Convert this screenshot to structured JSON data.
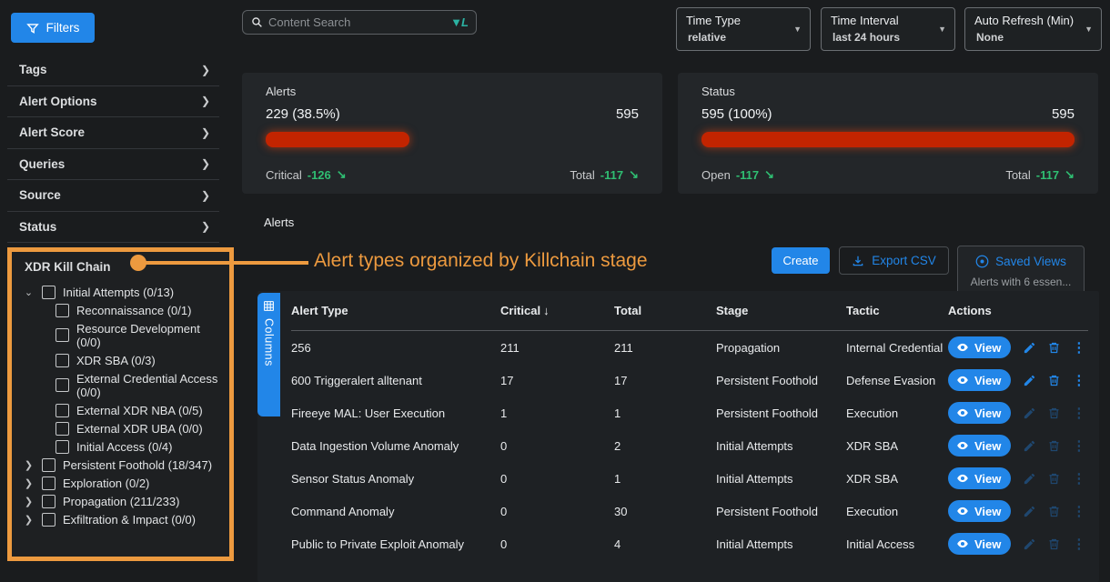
{
  "sidebar": {
    "filters_button": "Filters",
    "items": [
      "Tags",
      "Alert Options",
      "Alert Score",
      "Queries",
      "Source",
      "Status"
    ],
    "kill_chain": {
      "title": "XDR Kill Chain",
      "tree": [
        {
          "label": "Initial Attempts (0/13)",
          "expanded": true,
          "children": [
            "Reconnaissance (0/1)",
            "Resource Development (0/0)",
            "XDR SBA (0/3)",
            "External Credential Access (0/0)",
            "External XDR NBA (0/5)",
            "External XDR UBA (0/0)",
            "Initial Access (0/4)"
          ]
        },
        {
          "label": "Persistent Foothold (18/347)",
          "expanded": false
        },
        {
          "label": "Exploration (0/2)",
          "expanded": false
        },
        {
          "label": "Propagation (211/233)",
          "expanded": false
        },
        {
          "label": "Exfiltration & Impact (0/0)",
          "expanded": false
        }
      ]
    }
  },
  "topbar": {
    "search_placeholder": "Content Search",
    "dropdowns": [
      {
        "label": "Time Type",
        "value": "relative"
      },
      {
        "label": "Time Interval",
        "value": "last 24 hours"
      },
      {
        "label": "Auto Refresh (Min)",
        "value": "None"
      }
    ]
  },
  "cards": [
    {
      "title": "Alerts",
      "left_value": "229 (38.5%)",
      "right_value": "595",
      "bar_percent": 38.5,
      "footer_left_label": "Critical",
      "footer_left_delta": "-126",
      "footer_right_label": "Total",
      "footer_right_delta": "-117"
    },
    {
      "title": "Status",
      "left_value": "595 (100%)",
      "right_value": "595",
      "bar_percent": 100,
      "footer_left_label": "Open",
      "footer_left_delta": "-117",
      "footer_right_label": "Total",
      "footer_right_delta": "-117"
    }
  ],
  "annotation": {
    "text": "Alert types organized by Killchain stage",
    "color": "#ed9a3f"
  },
  "alerts_section": {
    "title": "Alerts",
    "create_button": "Create",
    "export_button": "Export CSV",
    "saved_views_label": "Saved Views",
    "saved_views_subtext": "Alerts with 6 essen...",
    "columns_button": "Columns"
  },
  "table": {
    "headers": {
      "alert_type": "Alert Type",
      "critical": "Critical",
      "total": "Total",
      "stage": "Stage",
      "tactic": "Tactic",
      "actions": "Actions"
    },
    "sorted_by": "critical",
    "view_label": "View",
    "rows": [
      {
        "alert_type": "256",
        "critical": "211",
        "total": "211",
        "stage": "Propagation",
        "tactic": "Internal Credential",
        "icons_dimmed": false
      },
      {
        "alert_type": "600 Triggeralert alltenant",
        "critical": "17",
        "total": "17",
        "stage": "Persistent Foothold",
        "tactic": "Defense Evasion",
        "icons_dimmed": false
      },
      {
        "alert_type": "Fireeye MAL: User Execution",
        "critical": "1",
        "total": "1",
        "stage": "Persistent Foothold",
        "tactic": "Execution",
        "icons_dimmed": true
      },
      {
        "alert_type": "Data Ingestion Volume Anomaly",
        "critical": "0",
        "total": "2",
        "stage": "Initial Attempts",
        "tactic": "XDR SBA",
        "icons_dimmed": true
      },
      {
        "alert_type": "Sensor Status Anomaly",
        "critical": "0",
        "total": "1",
        "stage": "Initial Attempts",
        "tactic": "XDR SBA",
        "icons_dimmed": true
      },
      {
        "alert_type": "Command Anomaly",
        "critical": "0",
        "total": "30",
        "stage": "Persistent Foothold",
        "tactic": "Execution",
        "icons_dimmed": true
      },
      {
        "alert_type": "Public to Private Exploit Anomaly",
        "critical": "0",
        "total": "4",
        "stage": "Initial Attempts",
        "tactic": "Initial Access",
        "icons_dimmed": true
      }
    ]
  },
  "icons": {
    "chevron_right": "❯",
    "chevron_down": "⌄",
    "dropdown_caret": "▼",
    "trend_down": "↘",
    "sort_desc": "↓",
    "kebab": "⋮"
  },
  "colors": {
    "accent_blue": "#2286e8",
    "annotation_orange": "#ed9a3f",
    "bar_red": "#c32400",
    "trend_green": "#2fbe72",
    "lucene_teal": "#2bb3a3"
  }
}
